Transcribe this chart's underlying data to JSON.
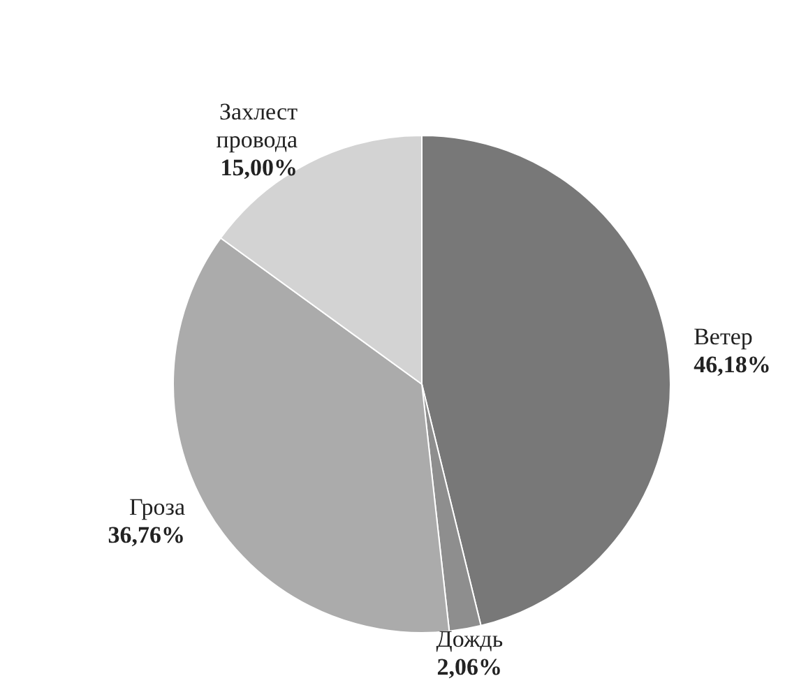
{
  "chart_data": {
    "type": "pie",
    "categories": [
      "Ветер",
      "Дождь",
      "Гроза",
      "Захлест провода"
    ],
    "values": [
      46.18,
      2.06,
      36.76,
      15.0
    ],
    "colors": [
      "#787878",
      "#8e8e8e",
      "#ababab",
      "#d3d3d3"
    ],
    "value_labels": [
      "46,18%",
      "2,06%",
      "36,76%",
      "15,00%"
    ],
    "legend": false
  }
}
